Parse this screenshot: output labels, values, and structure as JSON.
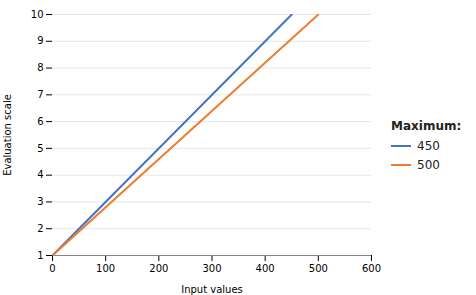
{
  "chart_data": {
    "type": "line",
    "xlabel": "Input values",
    "ylabel": "Evaluation scale",
    "legend_title": "Maximum:",
    "legend": "right",
    "grid": "y",
    "series": [
      {
        "name": "450",
        "color": "#4472C4",
        "x": [
          0,
          450
        ],
        "values": [
          1,
          10
        ]
      },
      {
        "name": "500",
        "color": "#ED7D31",
        "x": [
          0,
          500
        ],
        "values": [
          1,
          10
        ]
      }
    ],
    "xlim": [
      0,
      600
    ],
    "ylim": [
      1,
      10
    ],
    "xticks": [
      0,
      100,
      200,
      300,
      400,
      500,
      600
    ],
    "yticks": [
      1,
      2,
      3,
      4,
      5,
      6,
      7,
      8,
      9,
      10
    ]
  }
}
